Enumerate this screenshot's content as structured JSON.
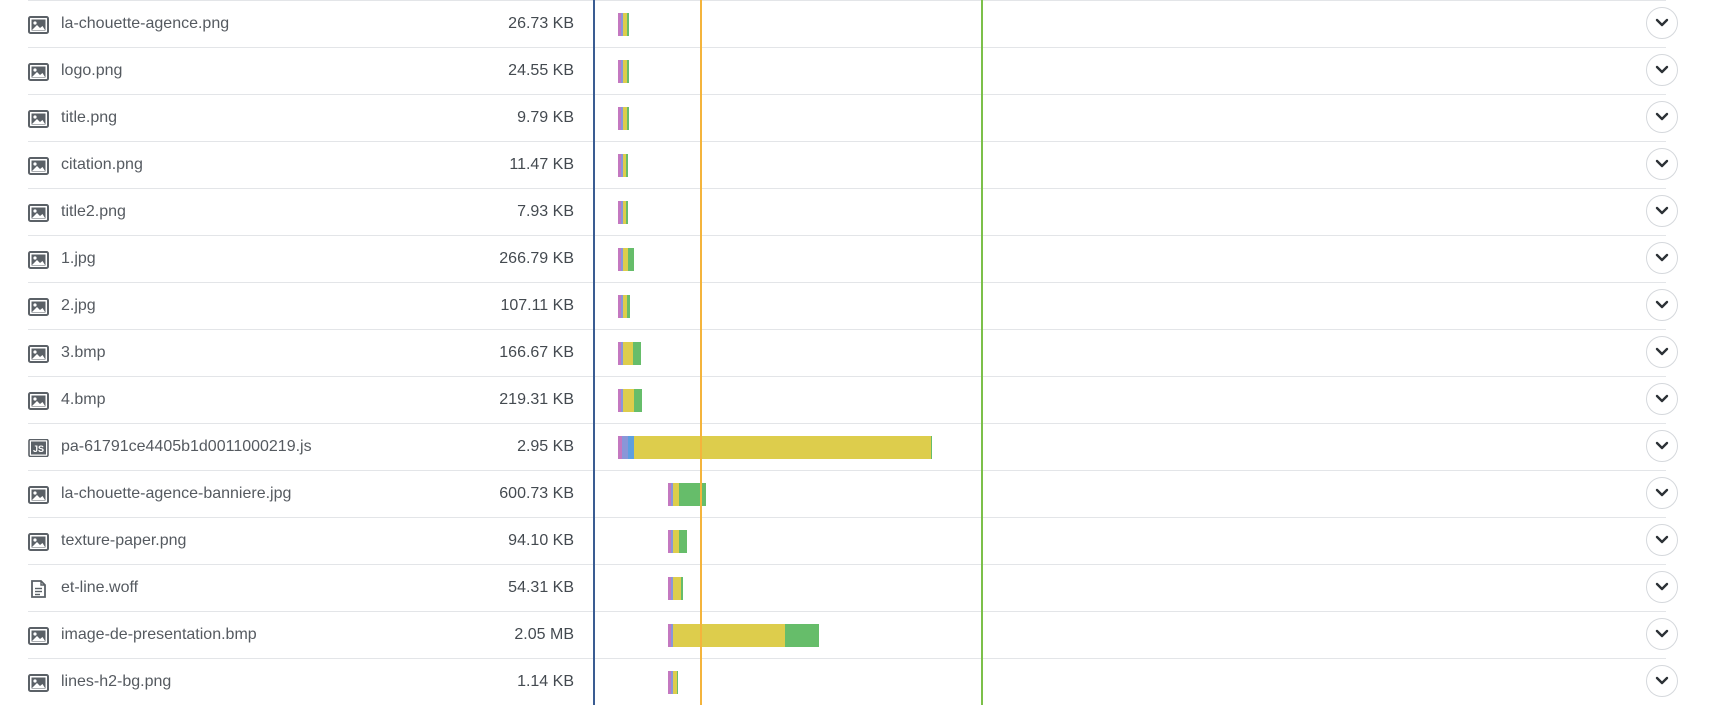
{
  "colors": {
    "dns": "#c478c0",
    "connect": "#8a96d8",
    "ssl": "#e9a64c",
    "wait": "#ddcd4c",
    "receive": "#66bd6a",
    "blue": "#5e9fe0",
    "marker_start": "#3a5c92",
    "marker_dom": "#f4b43c",
    "marker_load": "#7cc04a"
  },
  "requests": [
    {
      "name": "la-chouette-agence.png",
      "size": "26.73 KB",
      "icon": "image-icon"
    },
    {
      "name": "logo.png",
      "size": "24.55 KB",
      "icon": "image-icon"
    },
    {
      "name": "title.png",
      "size": "9.79 KB",
      "icon": "image-icon"
    },
    {
      "name": "citation.png",
      "size": "11.47 KB",
      "icon": "image-icon"
    },
    {
      "name": "title2.png",
      "size": "7.93 KB",
      "icon": "image-icon"
    },
    {
      "name": "1.jpg",
      "size": "266.79 KB",
      "icon": "image-icon"
    },
    {
      "name": "2.jpg",
      "size": "107.11 KB",
      "icon": "image-icon"
    },
    {
      "name": "3.bmp",
      "size": "166.67 KB",
      "icon": "image-icon"
    },
    {
      "name": "4.bmp",
      "size": "219.31 KB",
      "icon": "image-icon"
    },
    {
      "name": "pa-61791ce4405b1d0011000219.js",
      "size": "2.95 KB",
      "icon": "js-file-icon"
    },
    {
      "name": "la-chouette-agence-banniere.jpg",
      "size": "600.73 KB",
      "icon": "image-icon"
    },
    {
      "name": "texture-paper.png",
      "size": "94.10 KB",
      "icon": "image-icon"
    },
    {
      "name": "et-line.woff",
      "size": "54.31 KB",
      "icon": "document-icon"
    },
    {
      "name": "image-de-presentation.bmp",
      "size": "2.05 MB",
      "icon": "image-icon"
    },
    {
      "name": "lines-h2-bg.png",
      "size": "1.14 KB",
      "icon": "image-icon"
    }
  ]
}
